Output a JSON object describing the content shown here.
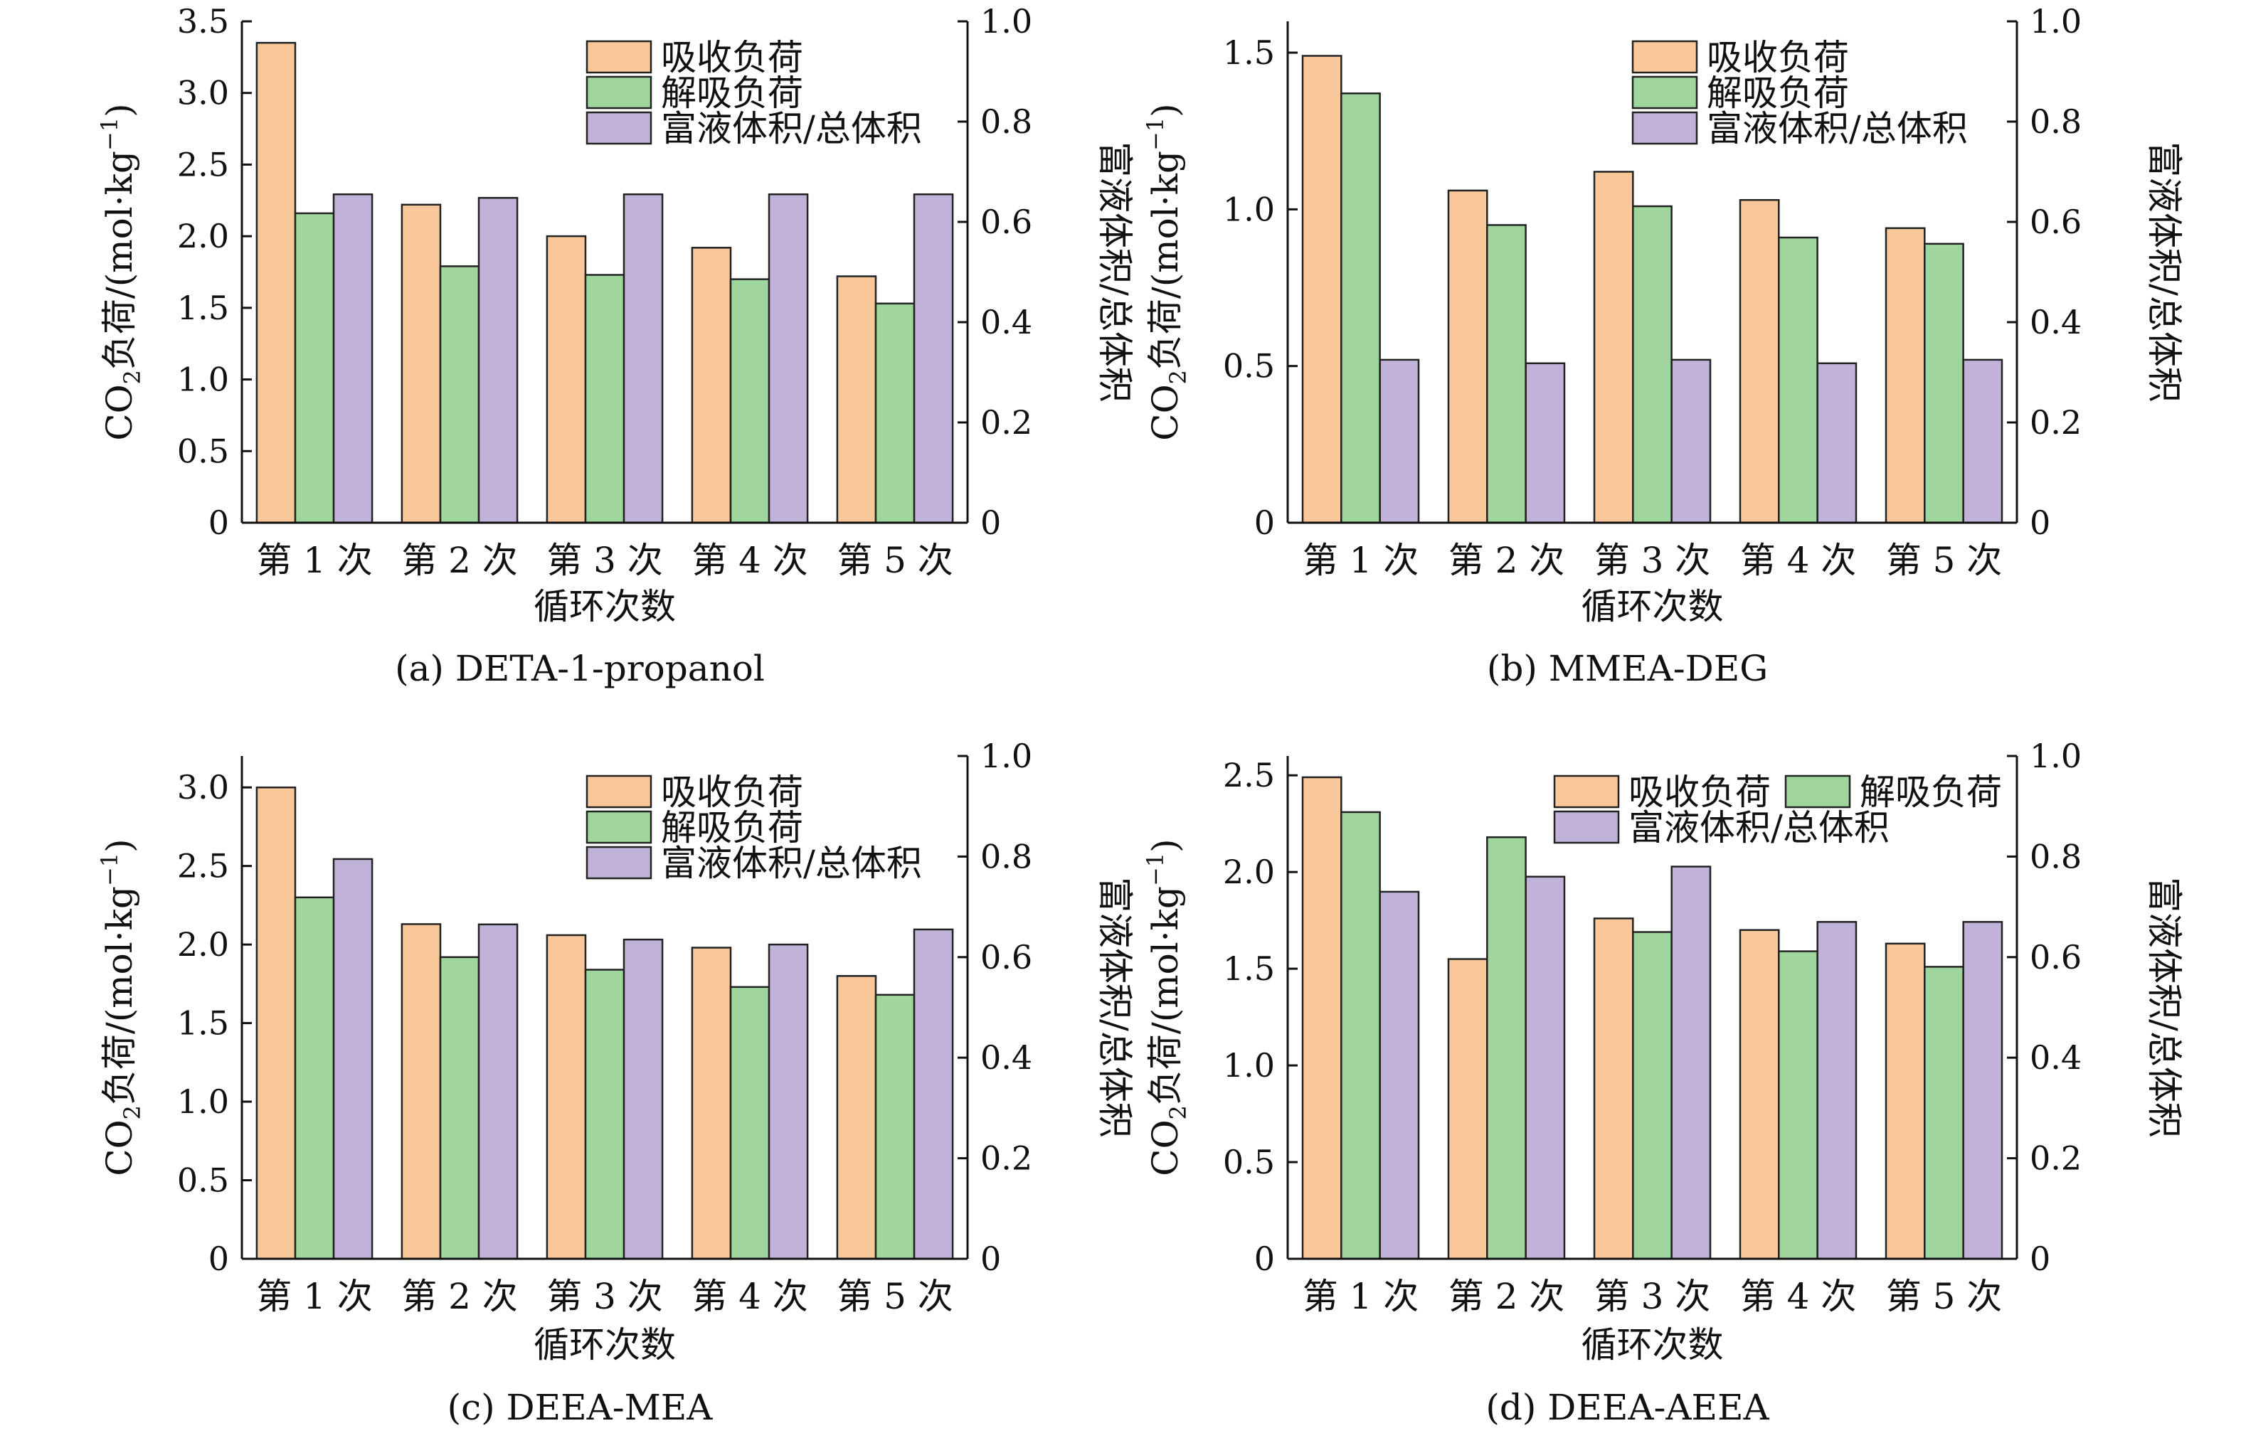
{
  "colors": {
    "absorption": "#F8C89A",
    "desorption": "#9ED69E",
    "volume_ratio": "#C0B2D8",
    "axis": "#111111"
  },
  "chart_data": [
    {
      "id": "a",
      "type": "bar",
      "caption": "(a) DETA-1-propanol",
      "xlabel": "循环次数",
      "ylabel_prefix": "CO",
      "ylabel_sub": "2",
      "ylabel_mid": "负荷/(mol·kg",
      "ylabel_sup": "−1",
      "ylabel_suffix": ")",
      "y2label": "富液体积/总体积",
      "categories": [
        "第 1 次",
        "第 2 次",
        "第 3 次",
        "第 4 次",
        "第 5 次"
      ],
      "ylim": [
        0,
        3.5
      ],
      "yticks": [
        "0",
        "0.5",
        "1.0",
        "1.5",
        "2.0",
        "2.5",
        "3.0",
        "3.5"
      ],
      "y2lim": [
        0,
        1.0
      ],
      "y2ticks": [
        "0",
        "0.2",
        "0.4",
        "0.6",
        "0.8",
        "1.0"
      ],
      "legend_layout": "column",
      "series": [
        {
          "name": "吸收负荷",
          "axis": "left",
          "color_key": "absorption",
          "values": [
            3.35,
            2.22,
            2.0,
            1.92,
            1.72
          ]
        },
        {
          "name": "解吸负荷",
          "axis": "left",
          "color_key": "desorption",
          "values": [
            2.16,
            1.79,
            1.73,
            1.7,
            1.53
          ]
        },
        {
          "name": "富液体积/总体积",
          "axis": "right",
          "color_key": "volume_ratio",
          "values": [
            0.655,
            0.648,
            0.655,
            0.655,
            0.655
          ]
        }
      ]
    },
    {
      "id": "b",
      "type": "bar",
      "caption": "(b) MMEA-DEG",
      "xlabel": "循环次数",
      "ylabel_prefix": "CO",
      "ylabel_sub": "2",
      "ylabel_mid": "负荷/(mol·kg",
      "ylabel_sup": "−1",
      "ylabel_suffix": ")",
      "y2label": "富液体积/总体积",
      "categories": [
        "第 1 次",
        "第 2 次",
        "第 3 次",
        "第 4 次",
        "第 5 次"
      ],
      "ylim": [
        0,
        1.6
      ],
      "yticks": [
        "0",
        "0.5",
        "1.0",
        "1.5"
      ],
      "ytick_values": [
        0,
        0.5,
        1.0,
        1.5
      ],
      "y2lim": [
        0,
        1.0
      ],
      "y2ticks": [
        "0",
        "0.2",
        "0.4",
        "0.6",
        "0.8",
        "1.0"
      ],
      "legend_layout": "column",
      "series": [
        {
          "name": "吸收负荷",
          "axis": "left",
          "color_key": "absorption",
          "values": [
            1.49,
            1.06,
            1.12,
            1.03,
            0.94
          ]
        },
        {
          "name": "解吸负荷",
          "axis": "left",
          "color_key": "desorption",
          "values": [
            1.37,
            0.95,
            1.01,
            0.91,
            0.89
          ]
        },
        {
          "name": "富液体积/总体积",
          "axis": "right",
          "color_key": "volume_ratio",
          "values": [
            0.325,
            0.318,
            0.325,
            0.318,
            0.325
          ]
        }
      ]
    },
    {
      "id": "c",
      "type": "bar",
      "caption": "(c) DEEA-MEA",
      "xlabel": "循环次数",
      "ylabel_prefix": "CO",
      "ylabel_sub": "2",
      "ylabel_mid": "负荷/(mol·kg",
      "ylabel_sup": "−1",
      "ylabel_suffix": ")",
      "y2label": "富液体积/总体积",
      "categories": [
        "第 1 次",
        "第 2 次",
        "第 3 次",
        "第 4 次",
        "第 5 次"
      ],
      "ylim": [
        0,
        3.2
      ],
      "yticks": [
        "0",
        "0.5",
        "1.0",
        "1.5",
        "2.0",
        "2.5",
        "3.0"
      ],
      "ytick_values": [
        0,
        0.5,
        1.0,
        1.5,
        2.0,
        2.5,
        3.0
      ],
      "y2lim": [
        0,
        1.0
      ],
      "y2ticks": [
        "0",
        "0.2",
        "0.4",
        "0.6",
        "0.8",
        "1.0"
      ],
      "legend_layout": "column",
      "series": [
        {
          "name": "吸收负荷",
          "axis": "left",
          "color_key": "absorption",
          "values": [
            3.0,
            2.13,
            2.06,
            1.98,
            1.8
          ]
        },
        {
          "name": "解吸负荷",
          "axis": "left",
          "color_key": "desorption",
          "values": [
            2.3,
            1.92,
            1.84,
            1.73,
            1.68
          ]
        },
        {
          "name": "富液体积/总体积",
          "axis": "right",
          "color_key": "volume_ratio",
          "values": [
            0.795,
            0.665,
            0.635,
            0.625,
            0.655
          ]
        }
      ]
    },
    {
      "id": "d",
      "type": "bar",
      "caption": "(d) DEEA-AEEA",
      "xlabel": "循环次数",
      "ylabel_prefix": "CO",
      "ylabel_sub": "2",
      "ylabel_mid": "负荷/(mol·kg",
      "ylabel_sup": "−1",
      "ylabel_suffix": ")",
      "y2label": "富液体积/总体积",
      "categories": [
        "第 1 次",
        "第 2 次",
        "第 3 次",
        "第 4 次",
        "第 5 次"
      ],
      "ylim": [
        0,
        2.6
      ],
      "yticks": [
        "0",
        "0.5",
        "1.0",
        "1.5",
        "2.0",
        "2.5"
      ],
      "ytick_values": [
        0,
        0.5,
        1.0,
        1.5,
        2.0,
        2.5
      ],
      "y2lim": [
        0,
        1.0
      ],
      "y2ticks": [
        "0",
        "0.2",
        "0.4",
        "0.6",
        "0.8",
        "1.0"
      ],
      "legend_layout": "two-row",
      "series": [
        {
          "name": "吸收负荷",
          "axis": "left",
          "color_key": "absorption",
          "values": [
            2.49,
            1.55,
            1.76,
            1.7,
            1.63
          ]
        },
        {
          "name": "解吸负荷",
          "axis": "left",
          "color_key": "desorption",
          "values": [
            2.31,
            2.18,
            1.69,
            1.59,
            1.51
          ]
        },
        {
          "name": "富液体积/总体积",
          "axis": "right",
          "color_key": "volume_ratio",
          "values": [
            0.73,
            0.76,
            0.78,
            0.67,
            0.67
          ]
        }
      ]
    }
  ]
}
